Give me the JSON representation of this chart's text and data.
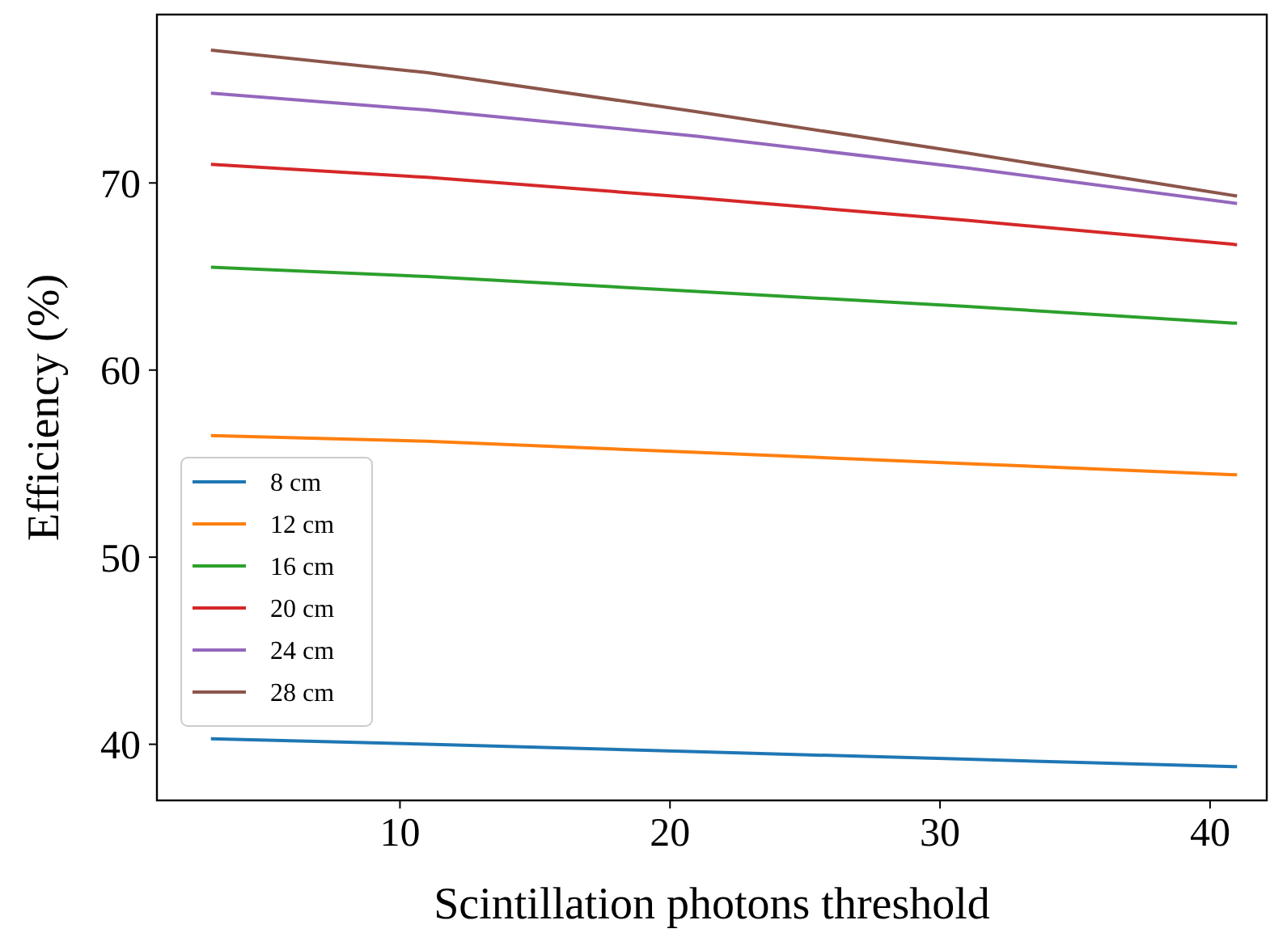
{
  "chart_data": {
    "type": "line",
    "xlabel": "Scintillation photons threshold",
    "ylabel": "Efficiency (%)",
    "x": [
      3,
      11,
      21,
      31,
      41
    ],
    "xlim": [
      1,
      42.1
    ],
    "xticks": [
      10,
      20,
      30,
      40
    ],
    "ylim": [
      37,
      79
    ],
    "yticks": [
      40,
      50,
      60,
      70
    ],
    "legend": "left",
    "grid": false,
    "series": [
      {
        "name": "8 cm",
        "color": "#1f77b4",
        "values": [
          40.3,
          40.0,
          39.6,
          39.2,
          38.8
        ]
      },
      {
        "name": "12 cm",
        "color": "#ff7f0e",
        "values": [
          56.5,
          56.2,
          55.6,
          55.0,
          54.4
        ]
      },
      {
        "name": "16 cm",
        "color": "#2ca02c",
        "values": [
          65.5,
          65.0,
          64.2,
          63.4,
          62.5
        ]
      },
      {
        "name": "20 cm",
        "color": "#d62728",
        "values": [
          71.0,
          70.3,
          69.2,
          68.0,
          66.7
        ]
      },
      {
        "name": "24 cm",
        "color": "#9467bd",
        "values": [
          74.8,
          73.9,
          72.5,
          70.8,
          68.9
        ]
      },
      {
        "name": "28 cm",
        "color": "#8c564b",
        "values": [
          77.1,
          75.9,
          73.8,
          71.6,
          69.3
        ]
      }
    ]
  }
}
